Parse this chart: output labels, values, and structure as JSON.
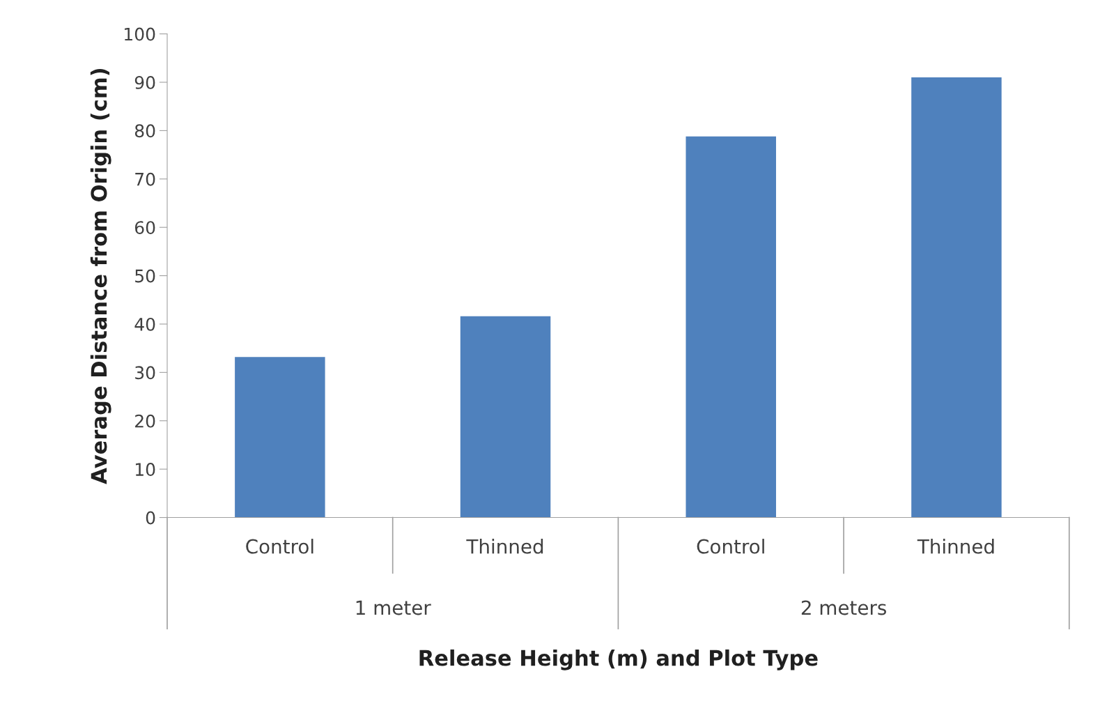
{
  "chart_data": {
    "type": "bar",
    "categories": [
      "Control",
      "Thinned",
      "Control",
      "Thinned"
    ],
    "values": [
      33.2,
      41.6,
      78.8,
      91.0
    ],
    "color": "#4f81bd",
    "xlabel": "Release Height (m) and Plot Type",
    "ylabel": "Average Distance from Origin (cm)",
    "ylim": [
      0,
      100
    ],
    "yticks": [
      0,
      10,
      20,
      30,
      40,
      50,
      60,
      70,
      80,
      90,
      100
    ],
    "annotations": [
      "1 meter",
      "2 meters"
    ],
    "grid": false,
    "legend": false
  }
}
